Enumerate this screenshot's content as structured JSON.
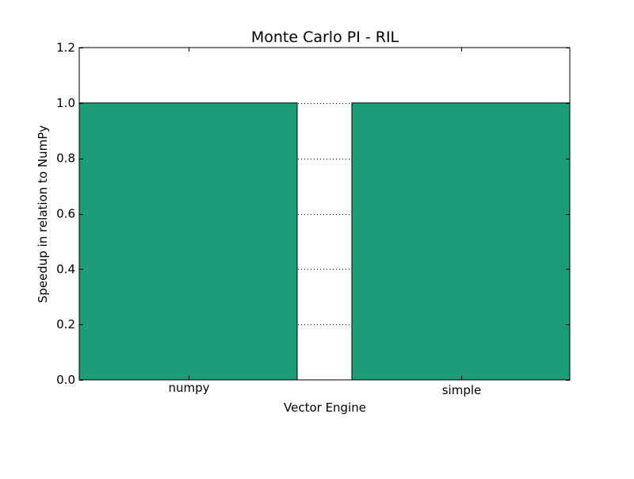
{
  "chart_data": {
    "type": "bar",
    "title": "Monte Carlo PI - RIL",
    "xlabel": "Vector Engine",
    "ylabel": "Speedup in relation to NumPy",
    "categories": [
      "numpy",
      "simple"
    ],
    "values": [
      1.0,
      1.0
    ],
    "ylim": [
      0.0,
      1.2
    ],
    "yticks": [
      0.0,
      0.2,
      0.4,
      0.6,
      0.8,
      1.0,
      1.2
    ],
    "ytick_labels": [
      "0.0",
      "0.2",
      "0.4",
      "0.6",
      "0.8",
      "1.0",
      "1.2"
    ],
    "grid": "y-dotted",
    "legend": "none",
    "bar_color": "#1b9e77"
  }
}
